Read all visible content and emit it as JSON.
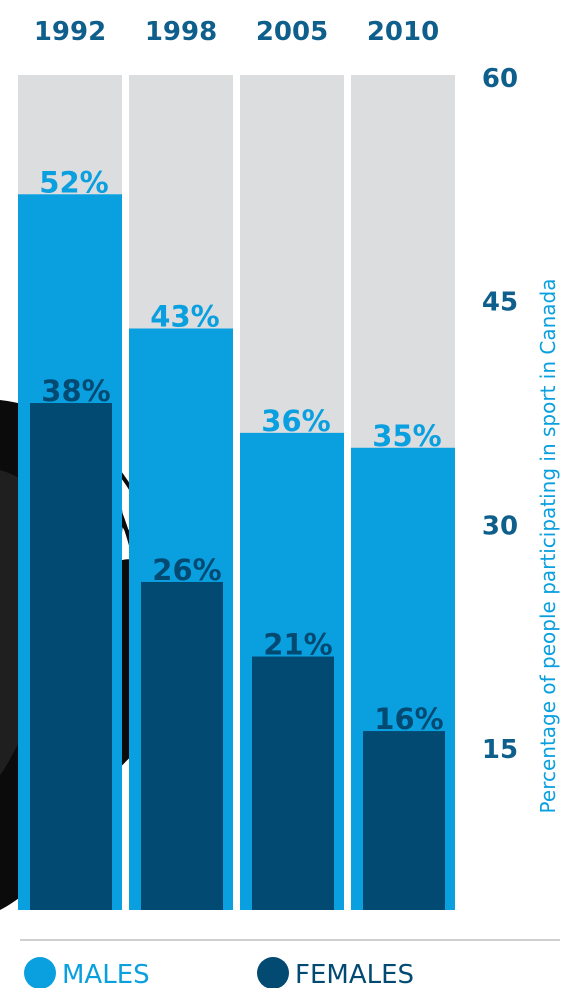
{
  "chart_data": {
    "type": "bar",
    "categories": [
      "1992",
      "1998",
      "2005",
      "2010"
    ],
    "series": [
      {
        "name": "MALES",
        "color": "#0aa0e0",
        "values": [
          52,
          43,
          36,
          35
        ],
        "labels": [
          "52%",
          "43%",
          "36%",
          "35%"
        ]
      },
      {
        "name": "FEMALES",
        "color": "#034a73",
        "values": [
          38,
          26,
          21,
          16
        ],
        "labels": [
          "38%",
          "26%",
          "21%",
          "16%"
        ]
      }
    ],
    "background_color": "#dcdddf",
    "ylabel": "Percentage of people participating in sport in Canada",
    "yticks": [
      "60",
      "45",
      "30",
      "15"
    ],
    "ytick_values": [
      60,
      45,
      30,
      15
    ],
    "ylim": [
      4,
      60
    ],
    "legend_position": "bottom",
    "grid": false
  }
}
